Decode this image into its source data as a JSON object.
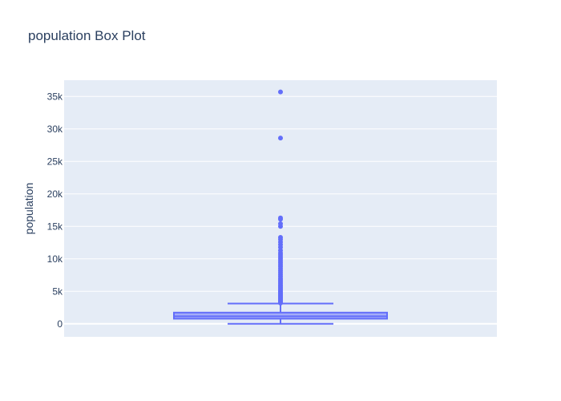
{
  "chart_data": {
    "type": "box",
    "title": "population Box Plot",
    "xlabel": "",
    "ylabel": "population",
    "ylim": [
      -2000,
      37500
    ],
    "yticks": [
      0,
      5000,
      10000,
      15000,
      20000,
      25000,
      30000,
      35000
    ],
    "ytick_labels": [
      "0",
      "5k",
      "10k",
      "15k",
      "20k",
      "25k",
      "30k",
      "35k"
    ],
    "series": [
      {
        "name": "population",
        "color": "#636efa",
        "lower_fence": 3,
        "q1": 790,
        "median": 1170,
        "q3": 1730,
        "upper_fence": 3130,
        "outliers": [
          3200,
          3350,
          3500,
          3650,
          3800,
          3950,
          4100,
          4250,
          4400,
          4550,
          4700,
          4850,
          5000,
          5200,
          5400,
          5600,
          5800,
          6000,
          6250,
          6500,
          6750,
          7000,
          7300,
          7600,
          7900,
          8200,
          8500,
          8800,
          9100,
          9400,
          9700,
          10000,
          10300,
          10600,
          10900,
          11300,
          11800,
          12200,
          12600,
          13000,
          13300,
          15000,
          15400,
          16100,
          16300,
          28600,
          35700
        ]
      }
    ]
  }
}
